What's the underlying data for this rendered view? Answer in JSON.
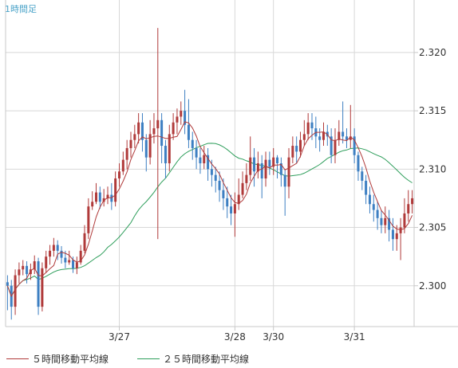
{
  "header": {
    "timeframe_label": "1時間足"
  },
  "legend": {
    "ma5_label": "５時間移動平均線",
    "ma25_label": "２５時間移動平均線",
    "ma5_color": "#b03a3a",
    "ma25_color": "#2e9e5b"
  },
  "colors": {
    "up": "#b03a3a",
    "down": "#3d7fc2",
    "grid": "#d8d8d8",
    "frame": "#c8c8c8",
    "text": "#333333"
  },
  "chart_data": {
    "type": "candlestick",
    "ylim": [
      2.2965,
      2.3245
    ],
    "yticks": [
      2.3,
      2.305,
      2.31,
      2.315,
      2.32
    ],
    "ytick_labels": [
      "2.300",
      "2.305",
      "2.310",
      "2.315",
      "2.320"
    ],
    "xtick_labels": [
      {
        "label": "3/27",
        "index": 29
      },
      {
        "label": "3/28",
        "index": 59
      },
      {
        "label": "3/30",
        "index": 69
      },
      {
        "label": "3/31",
        "index": 90
      }
    ],
    "candles": [
      [
        2.3003,
        2.3,
        2.3009,
        2.2979
      ],
      [
        2.3,
        2.2982,
        2.3005,
        2.2971
      ],
      [
        2.2982,
        2.3009,
        2.3014,
        2.2975
      ],
      [
        2.3009,
        2.3014,
        2.302,
        2.3002
      ],
      [
        2.3014,
        2.3017,
        2.3022,
        2.3009
      ],
      [
        2.3017,
        2.301,
        2.3021,
        2.3002
      ],
      [
        2.301,
        2.3014,
        2.3019,
        2.3005
      ],
      [
        2.3014,
        2.3021,
        2.3026,
        2.301
      ],
      [
        2.3021,
        2.2982,
        2.3024,
        2.2975
      ],
      [
        2.2982,
        2.3015,
        2.302,
        2.2978
      ],
      [
        2.3015,
        2.3025,
        2.303,
        2.3011
      ],
      [
        2.3025,
        2.303,
        2.3035,
        2.3018
      ],
      [
        2.303,
        2.3035,
        2.3041,
        2.3025
      ],
      [
        2.3035,
        2.303,
        2.3039,
        2.3022
      ],
      [
        2.303,
        2.3024,
        2.3034,
        2.3019
      ],
      [
        2.3024,
        2.302,
        2.303,
        2.3015
      ],
      [
        2.302,
        2.3022,
        2.303,
        2.3018
      ],
      [
        2.3022,
        2.3015,
        2.3025,
        2.3011
      ],
      [
        2.3015,
        2.302,
        2.3025,
        2.301
      ],
      [
        2.302,
        2.303,
        2.3035,
        2.3018
      ],
      [
        2.303,
        2.3045,
        2.3052,
        2.3028
      ],
      [
        2.3045,
        2.3068,
        2.3075,
        2.304
      ],
      [
        2.3068,
        2.3072,
        2.3081,
        2.3065
      ],
      [
        2.3072,
        2.308,
        2.3088,
        2.307
      ],
      [
        2.308,
        2.3072,
        2.3085,
        2.3066
      ],
      [
        2.3072,
        2.3075,
        2.3083,
        2.3068
      ],
      [
        2.3075,
        2.3078,
        2.3085,
        2.307
      ],
      [
        2.3078,
        2.3072,
        2.3088,
        2.3065
      ],
      [
        2.3072,
        2.3092,
        2.3098,
        2.3068
      ],
      [
        2.3092,
        2.3098,
        2.3105,
        2.3085
      ],
      [
        2.3098,
        2.3108,
        2.3115,
        2.3095
      ],
      [
        2.3108,
        2.3118,
        2.3125,
        2.31
      ],
      [
        2.3118,
        2.3125,
        2.3132,
        2.311
      ],
      [
        2.3125,
        2.313,
        2.3138,
        2.3118
      ],
      [
        2.313,
        2.314,
        2.3148,
        2.3122
      ],
      [
        2.314,
        2.3125,
        2.3148,
        2.3115
      ],
      [
        2.3125,
        2.311,
        2.313,
        2.3098
      ],
      [
        2.311,
        2.313,
        2.3142,
        2.3104
      ],
      [
        2.313,
        2.3135,
        2.3148,
        2.3122
      ],
      [
        2.3135,
        2.3142,
        2.3221,
        2.304
      ],
      [
        2.3142,
        2.312,
        2.3148,
        2.3105
      ],
      [
        2.312,
        2.3105,
        2.3125,
        2.3092
      ],
      [
        2.3105,
        2.313,
        2.3138,
        2.3098
      ],
      [
        2.313,
        2.314,
        2.3148,
        2.3125
      ],
      [
        2.314,
        2.3145,
        2.3152,
        2.313
      ],
      [
        2.3145,
        2.315,
        2.3158,
        2.3138
      ],
      [
        2.315,
        2.3138,
        2.3168,
        2.313
      ],
      [
        2.3138,
        2.3125,
        2.316,
        2.3118
      ],
      [
        2.3125,
        2.3118,
        2.3132,
        2.3108
      ],
      [
        2.3118,
        2.311,
        2.3125,
        2.31
      ],
      [
        2.311,
        2.3105,
        2.3118,
        2.3096
      ],
      [
        2.3105,
        2.3112,
        2.312,
        2.31
      ],
      [
        2.3112,
        2.31,
        2.3118,
        2.309
      ],
      [
        2.31,
        2.3095,
        2.3108,
        2.3085
      ],
      [
        2.3095,
        2.309,
        2.3102,
        2.308
      ],
      [
        2.309,
        2.3082,
        2.3098,
        2.3072
      ],
      [
        2.3082,
        2.3075,
        2.3092,
        2.3065
      ],
      [
        2.3075,
        2.3068,
        2.3085,
        2.3058
      ],
      [
        2.3068,
        2.3062,
        2.3078,
        2.3052
      ],
      [
        2.3062,
        2.307,
        2.308,
        2.3042
      ],
      [
        2.307,
        2.3078,
        2.3092,
        2.3065
      ],
      [
        2.3078,
        2.3088,
        2.3098,
        2.3075
      ],
      [
        2.3088,
        2.3095,
        2.3105,
        2.3082
      ],
      [
        2.3095,
        2.311,
        2.3128,
        2.309
      ],
      [
        2.311,
        2.3098,
        2.3118,
        2.3085
      ],
      [
        2.3098,
        2.3105,
        2.3115,
        2.3092
      ],
      [
        2.3105,
        2.3092,
        2.3112,
        2.3075
      ],
      [
        2.3092,
        2.3108,
        2.3115,
        2.3085
      ],
      [
        2.3108,
        2.3102,
        2.3115,
        2.3095
      ],
      [
        2.3102,
        2.311,
        2.3118,
        2.3095
      ],
      [
        2.311,
        2.3105,
        2.3112,
        2.3092
      ],
      [
        2.3105,
        2.3095,
        2.311,
        2.3085
      ],
      [
        2.3095,
        2.3085,
        2.31,
        2.306
      ],
      [
        2.3085,
        2.311,
        2.3118,
        2.3075
      ],
      [
        2.311,
        2.312,
        2.3128,
        2.3105
      ],
      [
        2.312,
        2.3115,
        2.3128,
        2.3105
      ],
      [
        2.3115,
        2.3125,
        2.3132,
        2.311
      ],
      [
        2.3125,
        2.313,
        2.3142,
        2.312
      ],
      [
        2.313,
        2.314,
        2.3148,
        2.3125
      ],
      [
        2.314,
        2.3135,
        2.3148,
        2.3125
      ],
      [
        2.3135,
        2.3128,
        2.3145,
        2.3118
      ],
      [
        2.3128,
        2.3125,
        2.3135,
        2.3115
      ],
      [
        2.3125,
        2.3132,
        2.314,
        2.312
      ],
      [
        2.3132,
        2.3128,
        2.3138,
        2.312
      ],
      [
        2.3128,
        2.3112,
        2.3135,
        2.3105
      ],
      [
        2.3112,
        2.3125,
        2.3135,
        2.3105
      ],
      [
        2.3125,
        2.3132,
        2.3142,
        2.312
      ],
      [
        2.3132,
        2.3128,
        2.3158,
        2.3122
      ],
      [
        2.3128,
        2.3125,
        2.3135,
        2.3118
      ],
      [
        2.3125,
        2.3128,
        2.3155,
        2.3118
      ],
      [
        2.3128,
        2.3112,
        2.3135,
        2.3105
      ],
      [
        2.3112,
        2.3098,
        2.3115,
        2.309
      ],
      [
        2.3098,
        2.309,
        2.3102,
        2.3082
      ],
      [
        2.309,
        2.3078,
        2.3095,
        2.307
      ],
      [
        2.3078,
        2.307,
        2.3085,
        2.3062
      ],
      [
        2.307,
        2.3065,
        2.3078,
        2.3055
      ],
      [
        2.3065,
        2.3058,
        2.3072,
        2.3048
      ],
      [
        2.3058,
        2.3052,
        2.3065,
        2.3045
      ],
      [
        2.3052,
        2.3058,
        2.3068,
        2.3045
      ],
      [
        2.3058,
        2.3048,
        2.3065,
        2.3038
      ],
      [
        2.3048,
        2.304,
        2.3058,
        2.303
      ],
      [
        2.304,
        2.3045,
        2.3052,
        2.303
      ],
      [
        2.3045,
        2.305,
        2.3058,
        2.3022
      ],
      [
        2.305,
        2.3062,
        2.3075,
        2.3045
      ],
      [
        2.3062,
        2.307,
        2.3082,
        2.3055
      ],
      [
        2.307,
        2.3075,
        2.3082,
        2.3062
      ]
    ]
  }
}
